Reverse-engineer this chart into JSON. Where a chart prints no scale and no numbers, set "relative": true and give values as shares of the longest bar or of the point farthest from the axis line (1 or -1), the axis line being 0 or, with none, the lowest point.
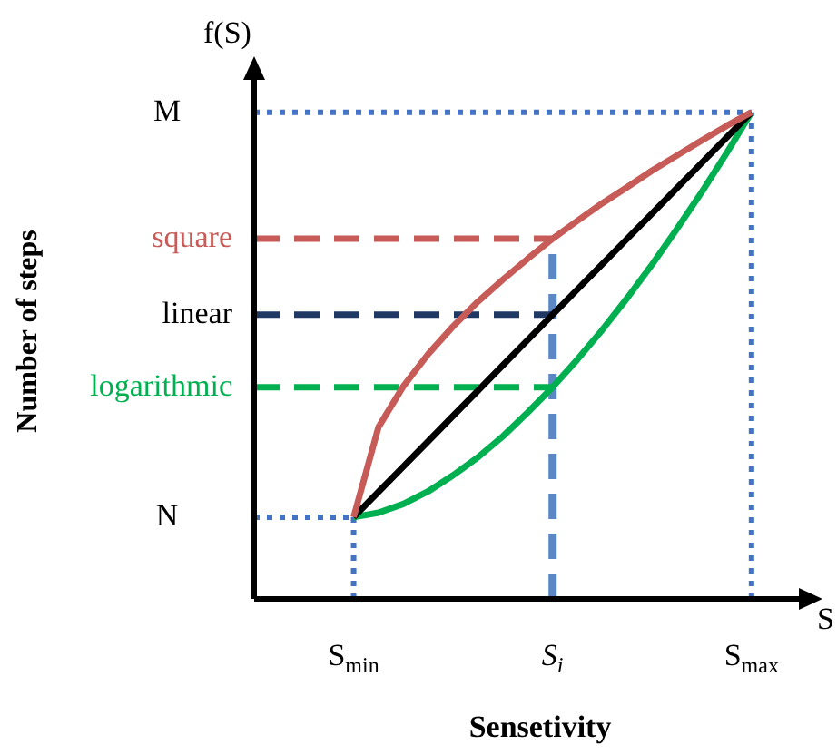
{
  "chart_data": {
    "type": "line",
    "xlabel": "Sensetivity",
    "relative": true,
    "annotations": [
      "f(S)",
      "S",
      "N",
      "M",
      "Number of steps"
    ],
    "categories": [
      null,
      null,
      null,
      null,
      "S$_{min}$",
      null,
      null,
      null,
      null,
      null,
      null,
      null,
      "S$_{i}$",
      null,
      null,
      null,
      null,
      null,
      null,
      null,
      "S$_{max}$",
      null,
      null,
      null
    ],
    "series": [
      {
        "name": "square",
        "color": "#c65b57",
        "line_style": "solid",
        "values": [
          null,
          null,
          null,
          null,
          0.168,
          0.353,
          0.437,
          0.503,
          0.56,
          0.611,
          0.656,
          0.699,
          0.74,
          0.777,
          0.813,
          0.846,
          0.88,
          0.911,
          0.942,
          0.972,
          1,
          null,
          null,
          null
        ]
      },
      {
        "color": "#c65b57",
        "line_style": "dashed",
        "values": [
          0.74,
          0.74,
          0.74,
          0.74,
          0.74,
          0.74,
          0.74,
          0.74,
          0.74,
          0.74,
          0.74,
          0.74,
          0.74,
          null,
          null,
          null,
          null,
          null,
          null,
          null,
          null,
          null,
          null,
          null
        ]
      },
      {
        "name": "linear",
        "color": "#000000",
        "line_style": "solid",
        "values": [
          null,
          null,
          null,
          null,
          0.168,
          0.22,
          0.272,
          0.324,
          0.376,
          0.428,
          0.48,
          0.532,
          0.584,
          0.636,
          0.688,
          0.74,
          0.792,
          0.844,
          0.896,
          0.948,
          1,
          null,
          null,
          null
        ]
      },
      {
        "color": "#1f3864",
        "line_style": "dashed",
        "values": [
          0.584,
          0.584,
          0.584,
          0.584,
          0.584,
          0.584,
          0.584,
          0.584,
          0.584,
          0.584,
          0.584,
          0.584,
          0.584,
          null,
          null,
          null,
          null,
          null,
          null,
          null,
          null,
          null,
          null,
          null
        ]
      },
      {
        "name": "logarithmic",
        "color": "#00b050",
        "line_style": "solid",
        "values": [
          null,
          null,
          null,
          null,
          0.168,
          0.177,
          0.195,
          0.221,
          0.254,
          0.291,
          0.334,
          0.383,
          0.435,
          0.492,
          0.553,
          0.618,
          0.687,
          0.76,
          0.836,
          0.916,
          1,
          null,
          null,
          null
        ]
      },
      {
        "color": "#00b050",
        "line_style": "dashed",
        "values": [
          0.435,
          0.435,
          0.435,
          0.435,
          0.435,
          0.435,
          0.435,
          0.435,
          0.435,
          0.435,
          0.435,
          0.435,
          0.435,
          null,
          null,
          null,
          null,
          null,
          null,
          null,
          null,
          null,
          null,
          null
        ]
      },
      {
        "color": "#4472c4",
        "line_style": "dotted",
        "values": [
          0.168,
          0.168,
          0.168,
          0.168,
          0.168,
          null,
          null,
          null,
          null,
          null,
          null,
          null,
          null,
          null,
          null,
          null,
          null,
          null,
          null,
          null,
          null,
          null,
          null,
          null
        ]
      },
      {
        "color": "#4472c4",
        "line_style": "dotted",
        "values": [
          1,
          1,
          1,
          1,
          1,
          1,
          1,
          1,
          1,
          1,
          1,
          1,
          1,
          1,
          1,
          1,
          1,
          1,
          1,
          1,
          1,
          null,
          null,
          null
        ]
      }
    ],
    "ref_lines": [
      {
        "axis": "x",
        "value": "S$_{min}$",
        "color": "#4472c4",
        "line_style": "dotted"
      },
      {
        "axis": "x",
        "value": "S$_{i}$",
        "color": "#5b87c5",
        "line_style": "dashed"
      },
      {
        "axis": "x",
        "value": "S$_{max}$",
        "color": "#4472c4",
        "line_style": "dotted"
      }
    ]
  }
}
